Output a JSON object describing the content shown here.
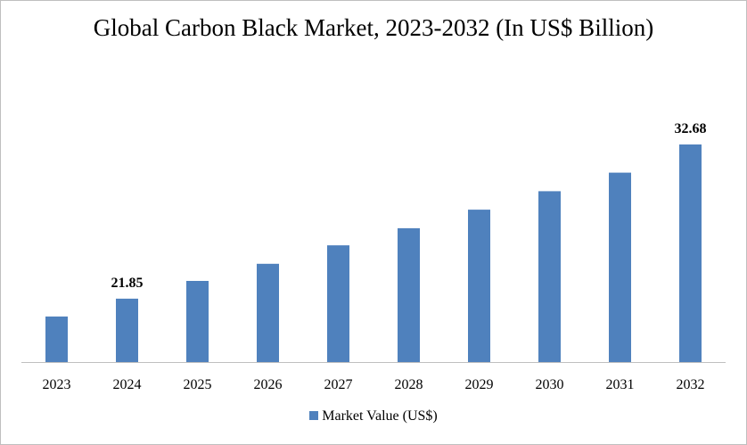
{
  "chart_data": {
    "type": "bar",
    "title": "Global Carbon Black Market, 2023-2032 (In US$ Billion)",
    "categories": [
      "2023",
      "2024",
      "2025",
      "2026",
      "2027",
      "2028",
      "2029",
      "2030",
      "2031",
      "2032"
    ],
    "series": [
      {
        "name": "Market Value (US$)",
        "color": "#4f81bd",
        "values": [
          20.6,
          21.85,
          23.1,
          24.3,
          25.6,
          26.8,
          28.1,
          29.4,
          30.7,
          32.68
        ]
      }
    ],
    "data_labels": [
      {
        "category": "2024",
        "text": "21.85"
      },
      {
        "category": "2032",
        "text": "32.68"
      }
    ],
    "ylim": [
      17.4,
      32.68
    ],
    "xlabel": "",
    "ylabel": "",
    "grid": false,
    "legend_position": "bottom",
    "axis_color": "#bfbfbf"
  }
}
